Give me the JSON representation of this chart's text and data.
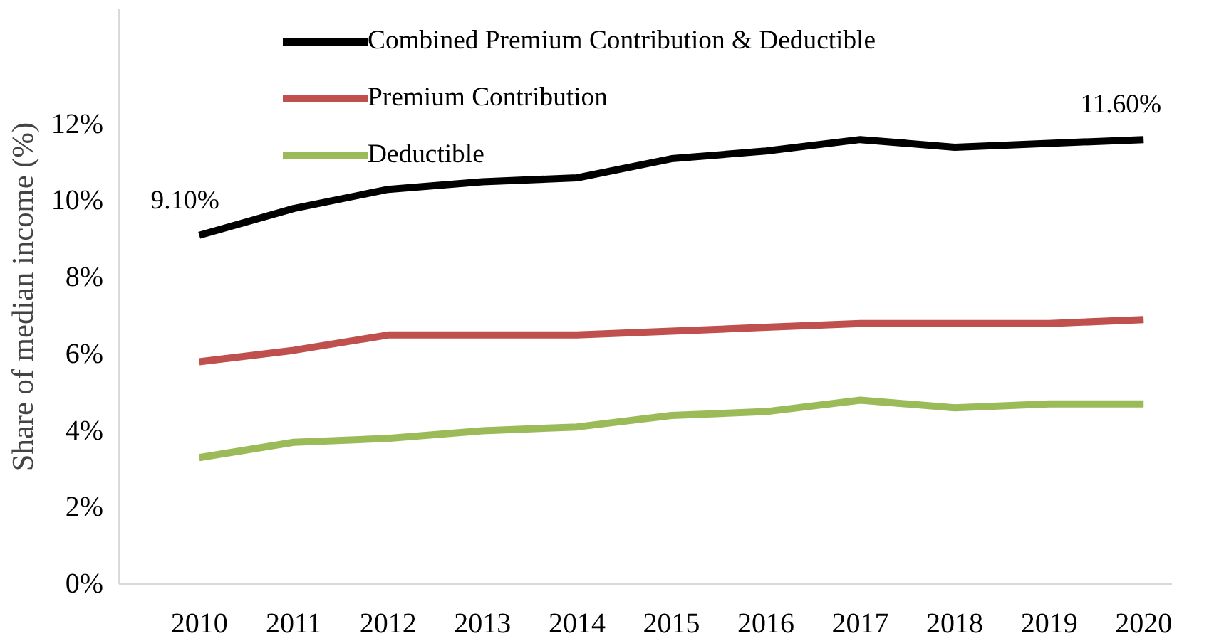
{
  "chart_data": {
    "type": "line",
    "ylabel": "Share of median income (%)",
    "categories": [
      "2010",
      "2011",
      "2012",
      "2013",
      "2014",
      "2015",
      "2016",
      "2017",
      "2018",
      "2019",
      "2020"
    ],
    "series": [
      {
        "name": "Combined Premium Contribution & Deductible",
        "color": "#000000",
        "values": [
          9.1,
          9.8,
          10.3,
          10.5,
          10.6,
          11.1,
          11.3,
          11.6,
          11.4,
          11.5,
          11.6
        ]
      },
      {
        "name": "Premium Contribution",
        "color": "#c0504d",
        "values": [
          5.8,
          6.1,
          6.5,
          6.5,
          6.5,
          6.6,
          6.7,
          6.8,
          6.8,
          6.8,
          6.9
        ]
      },
      {
        "name": "Deductible",
        "color": "#9bbb59",
        "values": [
          3.3,
          3.7,
          3.8,
          4.0,
          4.1,
          4.4,
          4.5,
          4.8,
          4.6,
          4.7,
          4.7
        ]
      }
    ],
    "ylim": [
      0,
      15
    ],
    "yticks": [
      {
        "value": 0,
        "label": "0%"
      },
      {
        "value": 2,
        "label": "2%"
      },
      {
        "value": 4,
        "label": "4%"
      },
      {
        "value": 6,
        "label": "6%"
      },
      {
        "value": 8,
        "label": "8%"
      },
      {
        "value": 10,
        "label": "10%"
      },
      {
        "value": 12,
        "label": "12%"
      }
    ],
    "annotations": [
      {
        "text": "9.10%",
        "x": "2010",
        "y": 9.1
      },
      {
        "text": "11.60%",
        "x": "2020",
        "y": 11.6
      }
    ],
    "grid": false,
    "legend": "top",
    "marker": "none",
    "line_style": "solid"
  }
}
